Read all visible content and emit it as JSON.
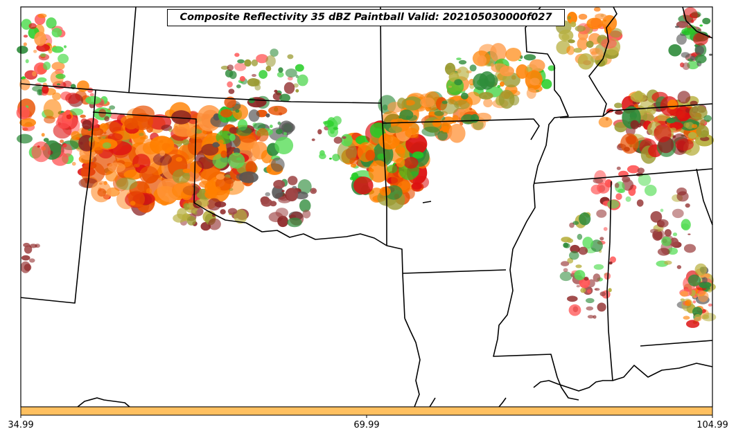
{
  "title": "Composite Reflectivity 35 dBZ Paintball Valid: 202105030000f027",
  "colorbar": {
    "ticks": [
      "34.99",
      "69.99",
      "104.99"
    ],
    "color": "#ffc060"
  },
  "colors": {
    "member_palette": [
      "#ff8000",
      "#e85000",
      "#dd1111",
      "#ff5555",
      "#ff9944",
      "#8b2222",
      "#a04848",
      "#9a9a30",
      "#b8b040",
      "#2e8b3a",
      "#22cc22",
      "#55dd55",
      "#555555"
    ],
    "boundary": "#000000"
  }
}
